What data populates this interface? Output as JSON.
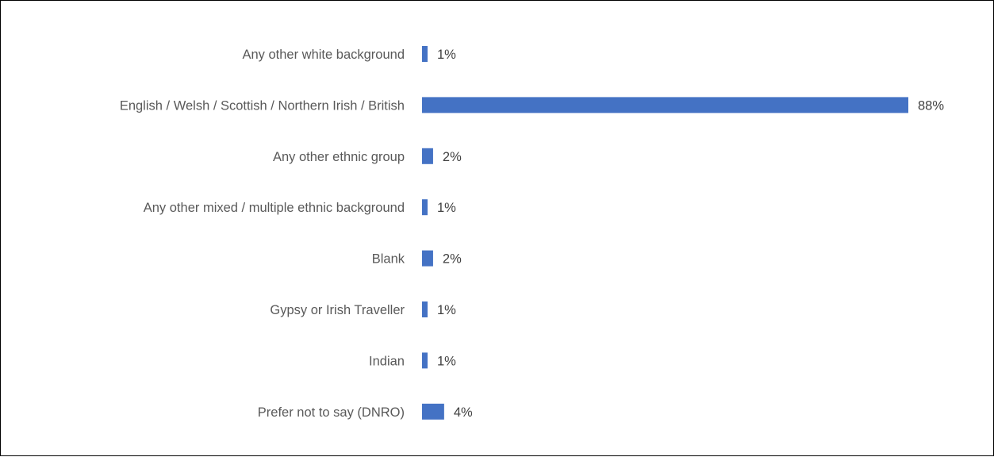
{
  "chart_data": {
    "type": "bar",
    "orientation": "horizontal",
    "categories": [
      "Any other white background",
      "English / Welsh / Scottish / Northern Irish / British",
      "Any other ethnic group",
      "Any other mixed / multiple ethnic background",
      "Blank",
      "Gypsy or Irish Traveller",
      "Indian",
      "Prefer not to say (DNRO)"
    ],
    "values": [
      1,
      88,
      2,
      1,
      2,
      1,
      1,
      4
    ],
    "value_labels": [
      "1%",
      "88%",
      "2%",
      "1%",
      "2%",
      "1%",
      "1%",
      "4%"
    ],
    "unit": "%",
    "title": "",
    "xlabel": "",
    "ylabel": "",
    "xlim": [
      0,
      88
    ],
    "grid": false,
    "legend": "none",
    "bar_color": "#4472C4"
  }
}
